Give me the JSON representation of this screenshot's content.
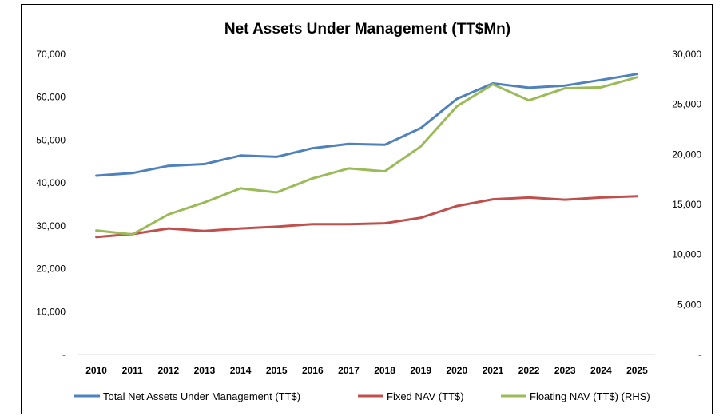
{
  "chart_data": {
    "type": "line",
    "title": "Net Assets Under Management (TT$Mn)",
    "x": [
      "2010",
      "2011",
      "2012",
      "2013",
      "2014",
      "2015",
      "2016",
      "2017",
      "2018",
      "2019",
      "2020",
      "2021",
      "2022",
      "2023",
      "2024",
      "2025"
    ],
    "y_left": {
      "ylim": [
        0,
        70000
      ],
      "tick_labels": [
        "-",
        "10,000",
        "20,000",
        "30,000",
        "40,000",
        "50,000",
        "60,000",
        "70,000"
      ],
      "tick_values": [
        0,
        10000,
        20000,
        30000,
        40000,
        50000,
        60000,
        70000
      ]
    },
    "y_right": {
      "ylim": [
        0,
        30000
      ],
      "tick_labels": [
        "-",
        "5,000",
        "10,000",
        "15,000",
        "20,000",
        "25,000",
        "30,000"
      ],
      "tick_values": [
        0,
        5000,
        10000,
        15000,
        20000,
        25000,
        30000
      ]
    },
    "series": [
      {
        "name": "Total Net Assets Under Management (TT$)",
        "axis": "left",
        "color": "#4F81BD",
        "values": [
          41700,
          42300,
          44000,
          44400,
          46400,
          46100,
          48100,
          49100,
          48900,
          52800,
          59600,
          63200,
          62200,
          62700,
          64000,
          65400
        ]
      },
      {
        "name": "Fixed NAV (TT$)",
        "axis": "left",
        "color": "#C0504D",
        "values": [
          27400,
          28100,
          29400,
          28800,
          29400,
          29800,
          30400,
          30400,
          30600,
          31900,
          34600,
          36200,
          36600,
          36100,
          36600,
          36900
        ]
      },
      {
        "name": "Floating NAV (TT$) (RHS)",
        "axis": "right",
        "color": "#9BBB59",
        "values": [
          12400,
          12000,
          14000,
          15200,
          16600,
          16200,
          17600,
          18600,
          18300,
          20800,
          24800,
          27000,
          25400,
          26600,
          26700,
          27700
        ]
      }
    ],
    "grid": false,
    "legend_position": "bottom"
  }
}
